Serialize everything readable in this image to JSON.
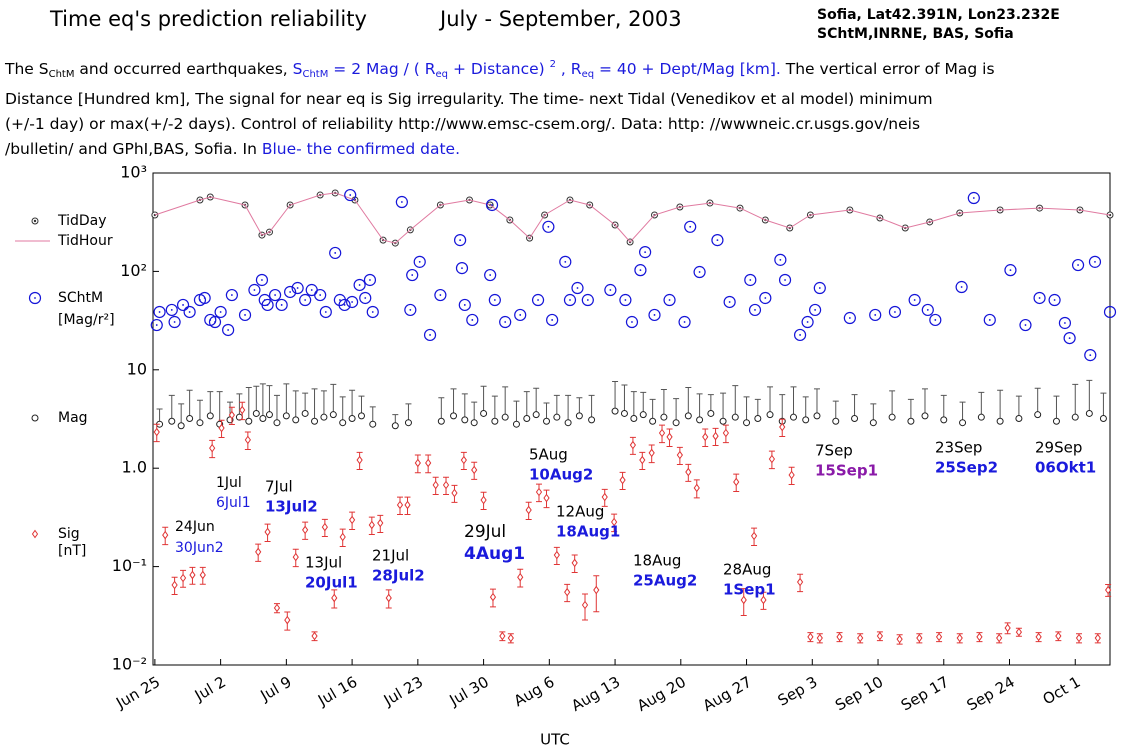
{
  "header": {
    "title": "Time eq's prediction reliability",
    "period": "July - September, 2003",
    "station": "Sofia, Lat42.391N, Lon23.232E",
    "institute": "SChtM,INRNE, BAS, Sofia"
  },
  "description": {
    "lines": [
      [
        {
          "text": "The S",
          "style": "plain"
        },
        {
          "text": "ChtM",
          "style": "sub"
        },
        {
          "text": " and occurred earthquakes, ",
          "style": "plain"
        },
        {
          "text": "S",
          "style": "blue"
        },
        {
          "text": "ChtM",
          "style": "blue-sub"
        },
        {
          "text": " = 2 Mag / ( R",
          "style": "blue"
        },
        {
          "text": "eq",
          "style": "blue-sub"
        },
        {
          "text": " + Distance) ",
          "style": "blue"
        },
        {
          "text": "2",
          "style": "blue-sup"
        },
        {
          "text": " ,  R",
          "style": "blue"
        },
        {
          "text": "eq",
          "style": "blue-sub"
        },
        {
          "text": " = 40 + Dept/Mag [km].",
          "style": "blue"
        },
        {
          "text": " The vertical error of Mag is",
          "style": "plain"
        }
      ],
      [
        {
          "text": "Distance [Hundred km], The signal for near eq is Sig irregularity. The time- next Tidal (Venedikov et al model) minimum",
          "style": "plain"
        }
      ],
      [
        {
          "text": "(+/-1 day) or max(+/-2 days). Control of reliability http://www.emsc-csem.org/. Data: http: //wwwneic.cr.usgs.gov/neis",
          "style": "plain"
        }
      ],
      [
        {
          "text": "/bulletin/ and GPhI,BAS, Sofia. In ",
          "style": "plain"
        },
        {
          "text": "Blue- the confirmed date.",
          "style": "blue"
        }
      ]
    ]
  },
  "chart_data": {
    "type": "scatter",
    "x_label": "UTC",
    "ylog": true,
    "xlim": [
      -0.2,
      101.7
    ],
    "ylim": [
      0.01,
      1000
    ],
    "xticks": [
      {
        "value": 0,
        "label": "Jun 25"
      },
      {
        "value": 7,
        "label": "Jul 2"
      },
      {
        "value": 14,
        "label": "Jul 9"
      },
      {
        "value": 21,
        "label": "Jul 16"
      },
      {
        "value": 28,
        "label": "Jul 23"
      },
      {
        "value": 35,
        "label": "Jul 30"
      },
      {
        "value": 42,
        "label": "Aug 6"
      },
      {
        "value": 49,
        "label": "Aug 13"
      },
      {
        "value": 56,
        "label": "Aug 20"
      },
      {
        "value": 63,
        "label": "Aug 27"
      },
      {
        "value": 70,
        "label": "Sep 3"
      },
      {
        "value": 77,
        "label": "Sep 10"
      },
      {
        "value": 84,
        "label": "Sep 17"
      },
      {
        "value": 91,
        "label": "Sep 24"
      },
      {
        "value": 98,
        "label": "Oct 1"
      }
    ],
    "yticks": [
      {
        "value": 0.01,
        "label": "10⁻²"
      },
      {
        "value": 0.1,
        "label": "10⁻¹"
      },
      {
        "value": 1,
        "label": "1.0"
      },
      {
        "value": 10,
        "label": "10"
      },
      {
        "value": 100,
        "label": "10²"
      },
      {
        "value": 1000,
        "label": "10³"
      }
    ],
    "series": [
      {
        "name": "TidDay",
        "style": "dot-marker",
        "color": "#333333",
        "x": [
          0,
          4.8,
          5.9,
          9.6,
          11.4,
          12.2,
          14.4,
          17.6,
          19.2,
          21.3,
          24.3,
          25.6,
          27.2,
          30.4,
          33.5,
          35.7,
          37.8,
          39.9,
          41.5,
          44.2,
          46.3,
          49.0,
          50.6,
          53.2,
          55.9,
          59.1,
          62.3,
          65.0,
          67.6,
          69.8,
          74.0,
          77.2,
          79.9,
          82.5,
          85.7,
          90.0,
          94.2,
          98.5,
          101.7
        ],
        "values": [
          374,
          532,
          570,
          473,
          234,
          251,
          473,
          597,
          627,
          532,
          208,
          194,
          264,
          473,
          532,
          473,
          333,
          218,
          374,
          532,
          473,
          296,
          199,
          374,
          451,
          495,
          440,
          333,
          276,
          374,
          421,
          349,
          276,
          318,
          392,
          421,
          440,
          421,
          374
        ]
      },
      {
        "name": "TidHour",
        "style": "line",
        "color": "#e07aa0",
        "x": [
          0,
          4.8,
          5.9,
          9.6,
          11.4,
          12.2,
          14.4,
          17.6,
          19.2,
          21.3,
          24.3,
          25.6,
          27.2,
          30.4,
          33.5,
          35.7,
          37.8,
          39.9,
          41.5,
          44.2,
          46.3,
          49.0,
          50.6,
          53.2,
          55.9,
          59.1,
          62.3,
          65.0,
          67.6,
          69.8,
          74.0,
          77.2,
          79.9,
          82.5,
          85.7,
          90.0,
          94.2,
          98.5,
          101.7
        ],
        "values": [
          374,
          532,
          570,
          473,
          234,
          251,
          473,
          597,
          627,
          532,
          208,
          194,
          264,
          473,
          532,
          473,
          333,
          218,
          374,
          532,
          473,
          296,
          199,
          374,
          451,
          495,
          440,
          333,
          276,
          374,
          421,
          349,
          276,
          318,
          392,
          421,
          440,
          421,
          374
        ]
      },
      {
        "name": "SChtM",
        "unit": "[Mag/r²]",
        "style": "ring",
        "color": "#1414d8",
        "x": [
          0.2,
          0.5,
          1.8,
          2.1,
          3.0,
          3.7,
          4.8,
          5.3,
          5.9,
          6.4,
          7.0,
          7.8,
          8.2,
          9.6,
          10.6,
          11.4,
          11.7,
          12.0,
          12.8,
          13.5,
          14.4,
          15.2,
          16.0,
          16.7,
          17.6,
          18.2,
          19.2,
          19.7,
          20.2,
          20.8,
          21.0,
          21.8,
          22.4,
          22.9,
          23.2,
          26.3,
          27.2,
          27.4,
          28.2,
          29.3,
          30.4,
          32.5,
          32.7,
          33.0,
          33.8,
          35.7,
          35.9,
          36.2,
          37.3,
          38.9,
          40.8,
          41.9,
          42.3,
          43.7,
          44.2,
          45.0,
          46.1,
          48.5,
          50.1,
          50.8,
          51.7,
          52.2,
          53.2,
          54.8,
          56.4,
          57.0,
          58.0,
          59.9,
          61.2,
          63.4,
          63.9,
          65.0,
          66.6,
          67.1,
          68.7,
          69.5,
          70.3,
          70.8,
          74.0,
          76.7,
          78.8,
          80.9,
          82.3,
          83.1,
          85.9,
          87.2,
          88.9,
          91.1,
          92.7,
          94.2,
          95.8,
          96.9,
          97.4,
          98.3,
          99.6,
          100.1,
          101.7
        ],
        "values": [
          28.5,
          38.7,
          40.6,
          30.6,
          45.6,
          38.7,
          51.2,
          53.7,
          32.1,
          30.6,
          38.7,
          25.4,
          57.5,
          36.1,
          64.7,
          81.8,
          51.2,
          45.6,
          57.5,
          45.6,
          61.8,
          67.8,
          51.2,
          64.7,
          57.5,
          38.7,
          154,
          51.2,
          45.6,
          597,
          48.9,
          72.8,
          53.7,
          81.8,
          38.7,
          507,
          40.6,
          91.8,
          125,
          22.6,
          57.5,
          208,
          108,
          45.6,
          32.1,
          91.8,
          473,
          51.2,
          30.6,
          36.1,
          51.2,
          284,
          32.1,
          125,
          51.2,
          67.8,
          51.2,
          64.7,
          51.2,
          30.6,
          103,
          157,
          36.1,
          51.2,
          30.6,
          284,
          98.6,
          208,
          48.9,
          81.8,
          40.6,
          53.7,
          131,
          81.8,
          22.6,
          30.6,
          40.6,
          67.8,
          33.6,
          36.1,
          38.7,
          51.2,
          40.6,
          32.1,
          69.4,
          557,
          32.1,
          103,
          28.5,
          53.7,
          51.2,
          29.9,
          21.0,
          116,
          14.1,
          125,
          38.7
        ]
      },
      {
        "name": "Mag",
        "style": "errbar-up",
        "color": "#222222",
        "x": [
          0.5,
          1.8,
          2.8,
          3.7,
          4.8,
          5.9,
          6.9,
          8.0,
          9.0,
          10.0,
          10.8,
          11.5,
          12.2,
          13.0,
          14.0,
          15.0,
          16.0,
          17.0,
          18.0,
          19.0,
          20.0,
          21.0,
          22.0,
          23.2,
          25.6,
          27.0,
          30.5,
          31.8,
          33.0,
          34.0,
          35.0,
          36.2,
          37.3,
          38.5,
          39.6,
          40.6,
          41.7,
          42.8,
          44.0,
          45.2,
          46.5,
          49.0,
          50.0,
          51.0,
          52.0,
          53.0,
          54.2,
          55.5,
          56.8,
          58.0,
          59.2,
          60.5,
          61.8,
          63.0,
          64.2,
          65.5,
          66.8,
          68.0,
          69.3,
          70.5,
          72.5,
          74.5,
          76.5,
          78.5,
          80.5,
          82.0,
          84.0,
          86.0,
          88.0,
          90.0,
          92.0,
          94.0,
          96.0,
          98.0,
          99.5,
          101.0
        ],
        "values": [
          2.8,
          3.0,
          2.7,
          3.2,
          2.9,
          3.4,
          2.8,
          3.1,
          3.3,
          3.0,
          3.6,
          3.2,
          3.5,
          2.9,
          3.4,
          3.1,
          3.6,
          3.0,
          3.3,
          3.5,
          2.9,
          3.2,
          3.4,
          2.8,
          2.7,
          2.9,
          3.0,
          3.4,
          3.1,
          2.9,
          3.6,
          3.0,
          3.3,
          2.8,
          3.2,
          3.5,
          3.0,
          3.3,
          2.9,
          3.4,
          3.1,
          3.8,
          3.6,
          3.2,
          3.5,
          3.0,
          3.3,
          2.9,
          3.4,
          3.1,
          3.6,
          3.0,
          3.3,
          2.9,
          3.2,
          3.5,
          3.0,
          3.3,
          3.1,
          3.4,
          3.0,
          3.2,
          2.9,
          3.3,
          3.0,
          3.4,
          3.1,
          2.9,
          3.3,
          3.0,
          3.2,
          3.5,
          3.0,
          3.3,
          3.6,
          3.2
        ],
        "errors": [
          1.2,
          2.5,
          1.8,
          3.0,
          2.0,
          2.6,
          3.2,
          1.6,
          2.4,
          3.6,
          3.2,
          4.0,
          3.4,
          2.6,
          3.8,
          3.0,
          2.2,
          3.4,
          2.8,
          3.6,
          2.4,
          3.0,
          2.0,
          1.4,
          0.8,
          1.6,
          2.2,
          3.0,
          2.6,
          1.8,
          3.2,
          2.4,
          3.4,
          2.0,
          2.8,
          3.0,
          1.6,
          2.2,
          2.6,
          1.8,
          2.4,
          3.8,
          3.4,
          2.8,
          2.4,
          2.0,
          3.0,
          2.2,
          3.2,
          2.6,
          2.0,
          2.8,
          3.6,
          2.4,
          1.8,
          3.2,
          2.6,
          3.4,
          2.2,
          3.0,
          1.8,
          2.4,
          1.6,
          2.8,
          2.0,
          3.0,
          2.4,
          1.8,
          2.6,
          3.2,
          2.2,
          3.0,
          2.4,
          3.8,
          4.2,
          2.6
        ]
      },
      {
        "name": "Sig",
        "unit": "[nT]",
        "style": "errbar-both",
        "color": "#e03535",
        "x": [
          0.2,
          1.1,
          2.1,
          3.0,
          4.0,
          5.1,
          6.1,
          7.1,
          8.2,
          9.3,
          9.9,
          11.0,
          12.0,
          13.0,
          14.1,
          15.0,
          16.0,
          17.0,
          18.1,
          19.1,
          20.0,
          21.0,
          21.8,
          23.1,
          24.0,
          24.9,
          26.1,
          26.9,
          28.0,
          29.1,
          29.9,
          31.0,
          31.9,
          32.9,
          34.0,
          35.0,
          36.0,
          37.0,
          37.9,
          38.9,
          39.8,
          40.9,
          41.7,
          42.8,
          43.9,
          44.7,
          45.8,
          47.0,
          47.9,
          48.9,
          49.8,
          50.9,
          51.9,
          52.9,
          54.0,
          54.8,
          55.9,
          56.8,
          57.7,
          58.6,
          59.7,
          60.8,
          61.9,
          62.7,
          63.8,
          64.8,
          65.7,
          66.8,
          67.8,
          68.7,
          69.8,
          70.8,
          72.9,
          75.1,
          77.2,
          79.3,
          81.4,
          83.5,
          85.7,
          87.8,
          89.9,
          90.8,
          92.0,
          94.1,
          96.2,
          98.4,
          100.4,
          101.5
        ],
        "values": [
          2.33,
          0.209,
          0.065,
          0.0766,
          0.0822,
          0.0822,
          1.6,
          2.56,
          3.47,
          3.9,
          1.94,
          0.141,
          0.225,
          0.038,
          0.0286,
          0.125,
          0.236,
          0.0197,
          0.252,
          0.048,
          0.2,
          0.298,
          1.21,
          0.265,
          0.277,
          0.048,
          0.423,
          0.423,
          1.13,
          1.13,
          0.675,
          0.675,
          0.56,
          1.21,
          0.96,
          0.475,
          0.049,
          0.0197,
          0.0188,
          0.078,
          0.376,
          0.573,
          0.498,
          0.131,
          0.055,
          0.109,
          0.0407,
          0.0578,
          0.509,
          0.284,
          0.758,
          1.72,
          1.21,
          1.43,
          2.28,
          2.08,
          1.36,
          0.914,
          0.63,
          2.08,
          2.12,
          2.28,
          0.725,
          0.0458,
          0.205,
          0.0458,
          1.24,
          2.62,
          0.853,
          0.0697,
          0.0193,
          0.0188,
          0.0193,
          0.0188,
          0.0197,
          0.0183,
          0.0188,
          0.0193,
          0.0188,
          0.0193,
          0.0188,
          0.0238,
          0.0216,
          0.0193,
          0.0197,
          0.0188,
          0.0188,
          0.0578
        ],
        "errors": [
          0.47,
          0.042,
          0.013,
          0.015,
          0.016,
          0.016,
          0.32,
          0.51,
          0.69,
          0.78,
          0.39,
          0.028,
          0.045,
          0.004,
          0.006,
          0.025,
          0.047,
          0.002,
          0.05,
          0.01,
          0.04,
          0.06,
          0.24,
          0.053,
          0.055,
          0.01,
          0.085,
          0.085,
          0.23,
          0.23,
          0.135,
          0.135,
          0.11,
          0.24,
          0.19,
          0.095,
          0.01,
          0.002,
          0.002,
          0.016,
          0.075,
          0.115,
          0.1,
          0.026,
          0.011,
          0.022,
          0.012,
          0.023,
          0.1,
          0.057,
          0.15,
          0.34,
          0.24,
          0.29,
          0.46,
          0.42,
          0.27,
          0.18,
          0.13,
          0.42,
          0.42,
          0.46,
          0.145,
          0.014,
          0.041,
          0.009,
          0.25,
          0.52,
          0.17,
          0.014,
          0.002,
          0.002,
          0.002,
          0.002,
          0.002,
          0.002,
          0.002,
          0.002,
          0.002,
          0.002,
          0.002,
          0.003,
          0.002,
          0.002,
          0.002,
          0.002,
          0.002,
          0.008
        ]
      }
    ],
    "annotations": [
      {
        "event": "24Jun",
        "prediction": "30Jun2",
        "color": "#1a1adc"
      },
      {
        "event": "1Jul",
        "prediction": "6Jul1",
        "color": "#1a1adc"
      },
      {
        "event": "7Jul",
        "prediction": "13Jul2",
        "color": "#1a1adc"
      },
      {
        "event": "13Jul",
        "prediction": "20Jul1",
        "color": "#1a1adc"
      },
      {
        "event": "21Jul",
        "prediction": "28Jul2",
        "color": "#1a1adc"
      },
      {
        "event": "29Jul",
        "prediction": "4Aug1",
        "color": "#1a1adc"
      },
      {
        "event": "5Aug",
        "prediction": "10Aug2",
        "color": "#1a1adc"
      },
      {
        "event": "12Aug",
        "prediction": "18Aug1",
        "color": "#1a1adc"
      },
      {
        "event": "18Aug",
        "prediction": "25Aug2",
        "color": "#1a1adc"
      },
      {
        "event": "28Aug",
        "prediction": "1Sep1",
        "color": "#1a1adc"
      },
      {
        "event": "7Sep",
        "prediction": "15Sep1",
        "color": "#8a1aa8"
      },
      {
        "event": "23Sep",
        "prediction": "25Sep2",
        "color": "#1a1adc"
      },
      {
        "event": "29Sep",
        "prediction": "06Okt1",
        "color": "#1a1adc"
      }
    ]
  }
}
